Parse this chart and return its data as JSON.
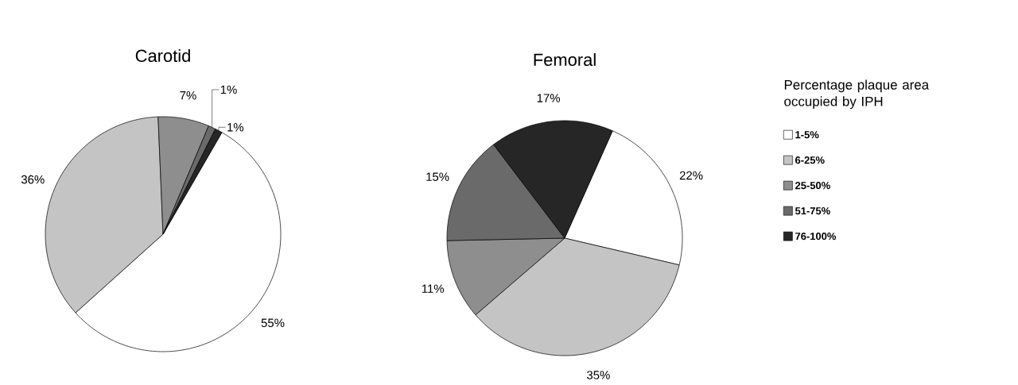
{
  "chart_data": [
    {
      "type": "pie",
      "title": "Carotid",
      "categories": [
        null,
        null,
        null,
        null,
        null
      ],
      "values": [
        55,
        36,
        7,
        1,
        1
      ],
      "value_labels": [
        "55%",
        "36%",
        "7%",
        "1%",
        "1%"
      ],
      "colors": [
        "#ffffff",
        "#c4c4c4",
        "#8e8e8e",
        "#6a6a6a",
        "#262626"
      ]
    },
    {
      "type": "pie",
      "title": "Femoral",
      "legend_title": "Percentage plaque area occupied by IPH",
      "categories": [
        "1-5%",
        "6-25%",
        "25-50%",
        "51-75%",
        "76-100%"
      ],
      "values": [
        22,
        35,
        11,
        15,
        17
      ],
      "value_labels": [
        "22%",
        "35%",
        "11%",
        "15%",
        "17%"
      ],
      "colors": [
        "#ffffff",
        "#c4c4c4",
        "#8e8e8e",
        "#6a6a6a",
        "#262626"
      ],
      "legend": "right"
    }
  ]
}
